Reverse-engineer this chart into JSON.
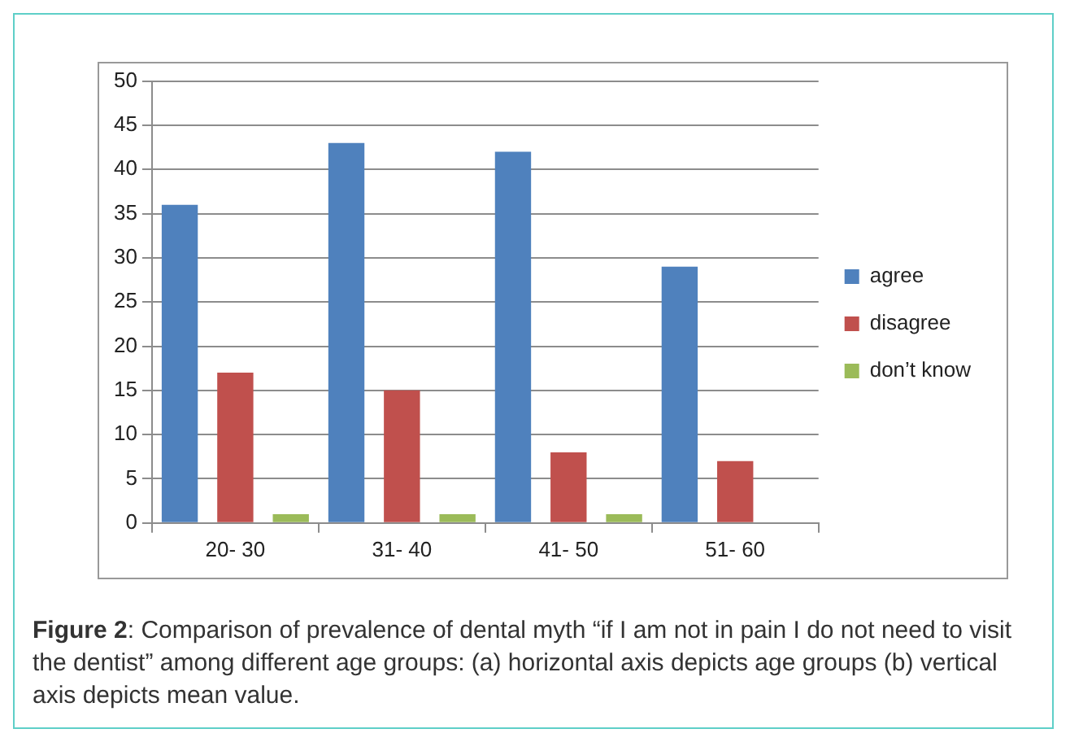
{
  "chart_data": {
    "type": "bar",
    "categories": [
      "20- 30",
      "31- 40",
      "41- 50",
      "51- 60"
    ],
    "series": [
      {
        "name": "agree",
        "color": "#4f81bd",
        "values": [
          36,
          43,
          42,
          29
        ]
      },
      {
        "name": "disagree",
        "color": "#c0504d",
        "values": [
          17,
          15,
          8,
          7
        ]
      },
      {
        "name": "don’t know",
        "color": "#9bbb59",
        "values": [
          1,
          1,
          1,
          0
        ]
      }
    ],
    "ylim": [
      0,
      50
    ],
    "yticks": [
      0,
      5,
      10,
      15,
      20,
      25,
      30,
      35,
      40,
      45,
      50
    ],
    "grid": "y",
    "legend": "right",
    "annotations": [
      "Figure 2: Comparison of prevalence of dental myth “if I am not in pain I do not need to visit the dentist” among different age groups: (a) horizontal axis depicts age groups (b) vertical axis depicts mean value."
    ]
  }
}
